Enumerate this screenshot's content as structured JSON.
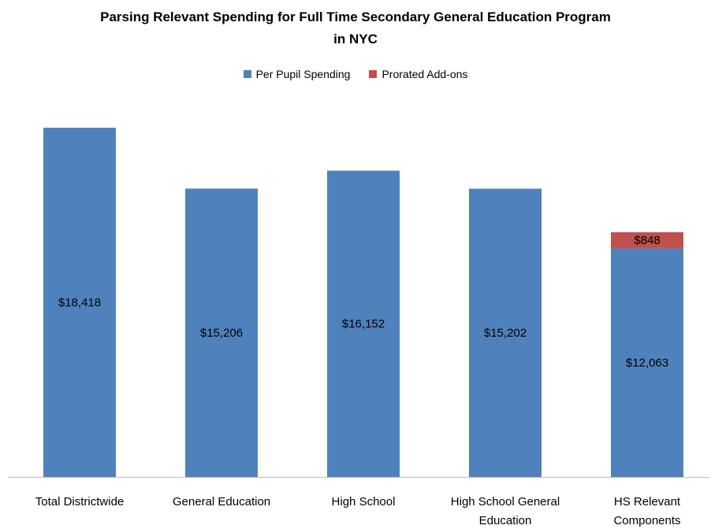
{
  "chart_data": {
    "type": "stacked_bar",
    "title": "Parsing Relevant Spending for Full Time Secondary General Education Program in NYC",
    "categories": [
      "Total Districtwide",
      "General Education",
      "High School",
      "High School General Education",
      "HS Relevant Components"
    ],
    "series": [
      {
        "name": "Per Pupil Spending",
        "color": "#4f81bd",
        "values": [
          18418,
          15206,
          16152,
          15202,
          12063
        ],
        "value_labels": [
          "$18,418",
          "$15,206",
          "$16,152",
          "$15,202",
          "$12,063"
        ]
      },
      {
        "name": "Prorated Add-ons",
        "color": "#c0504d",
        "values": [
          null,
          null,
          null,
          null,
          848
        ],
        "value_labels": [
          null,
          null,
          null,
          null,
          "$848"
        ]
      }
    ]
  }
}
